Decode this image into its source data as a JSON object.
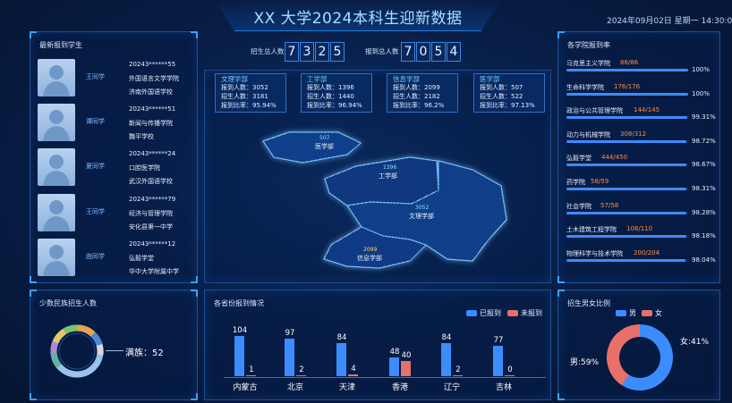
{
  "header": {
    "title": "XX 大学2024本科生迎新数据",
    "datetime": "2024年09月02日 星期一 14:30:0"
  },
  "colors": {
    "reported": "#3d8cff",
    "not_reported": "#e8706a",
    "male": "#3d8cff",
    "female": "#e8706a",
    "rate_frac": "#ff8a4c"
  },
  "students": {
    "title": "最新报到学生",
    "items": [
      {
        "name": "王同学",
        "id": "20243******55",
        "college": "外国语言文学学院",
        "school": "济南外国语学校"
      },
      {
        "name": "谭同学",
        "id": "20243******51",
        "college": "新闻与传播学院",
        "school": "魏平学校"
      },
      {
        "name": "夏同学",
        "id": "20243******24",
        "college": "口腔医学院",
        "school": "武汉外国语学校"
      },
      {
        "name": "王同学",
        "id": "20243******79",
        "college": "经济与管理学院",
        "school": "安化县第一中学"
      },
      {
        "name": "曲同学",
        "id": "20243******12",
        "college": "弘毅学堂",
        "school": "华中大学附属中学"
      }
    ]
  },
  "counters": {
    "enroll": {
      "label": "招生总人数",
      "digits": [
        "7",
        "3",
        "2",
        "5"
      ]
    },
    "report": {
      "label": "报到总人数",
      "digits": [
        "7",
        "0",
        "5",
        "4"
      ]
    }
  },
  "departments": [
    {
      "name": "文理学部",
      "l1": "报到人数：3052",
      "l2": "招生人数：3181",
      "l3": "报到比率：95.94%"
    },
    {
      "name": "工学部",
      "l1": "报到人数：1396",
      "l2": "招生人数：1440",
      "l3": "报到比率：96.94%"
    },
    {
      "name": "信息学部",
      "l1": "报到人数：2099",
      "l2": "招生人数：2182",
      "l3": "报到比率：96.2%"
    },
    {
      "name": "医学部",
      "l1": "报到人数：507",
      "l2": "招生人数：522",
      "l3": "报到比率：97.13%"
    }
  ],
  "map": {
    "yixue": {
      "num": "507",
      "name": "医学部"
    },
    "gongxue": {
      "num": "1396",
      "name": "工学部"
    },
    "wenli": {
      "num": "3052",
      "name": "文理学部"
    },
    "xinxi": {
      "num": "2099",
      "name": "信息学部"
    }
  },
  "rates": {
    "title": "各学院报到率",
    "items": [
      {
        "name": "马克思主义学院",
        "frac": "86/86",
        "pct": "100%",
        "value": 100
      },
      {
        "name": "生命科学学院",
        "frac": "176/176",
        "pct": "100%",
        "value": 100
      },
      {
        "name": "政治与公共管理学院",
        "frac": "144/145",
        "pct": "99.31%",
        "value": 99.31
      },
      {
        "name": "动力与机械学院",
        "frac": "308/312",
        "pct": "98.72%",
        "value": 98.72
      },
      {
        "name": "弘毅学堂",
        "frac": "444/450",
        "pct": "98.67%",
        "value": 98.67
      },
      {
        "name": "药学院",
        "frac": "58/59",
        "pct": "98.31%",
        "value": 98.31
      },
      {
        "name": "社会学院",
        "frac": "57/58",
        "pct": "98.28%",
        "value": 98.28
      },
      {
        "name": "土木建筑工程学院",
        "frac": "108/110",
        "pct": "98.18%",
        "value": 98.18
      },
      {
        "name": "物理科学与技术学院",
        "frac": "200/204",
        "pct": "98.04%",
        "value": 98.04
      }
    ]
  },
  "minority": {
    "title": "少数民族招生人数",
    "label": "满族：52"
  },
  "province": {
    "title": "各省份报到情况",
    "legend_reported": "已报到",
    "legend_not": "未报到"
  },
  "gender": {
    "title": "招生男女比例",
    "legend_male": "男",
    "legend_female": "女",
    "male_label": "男:59%",
    "female_label": "女:41%"
  },
  "chart_data": [
    {
      "type": "bar",
      "title": "各省份报到情况",
      "categories": [
        "内蒙古",
        "北京",
        "天津",
        "香港",
        "辽宁",
        "吉林"
      ],
      "series": [
        {
          "name": "已报到",
          "values": [
            104,
            97,
            84,
            48,
            84,
            77
          ]
        },
        {
          "name": "未报到",
          "values": [
            1,
            2,
            4,
            40,
            2,
            0
          ]
        }
      ],
      "ylim": [
        0,
        110
      ],
      "legend": "top-right"
    },
    {
      "type": "pie",
      "title": "招生男女比例",
      "categories": [
        "男",
        "女"
      ],
      "values": [
        59,
        41
      ],
      "legend": "top-right"
    }
  ]
}
